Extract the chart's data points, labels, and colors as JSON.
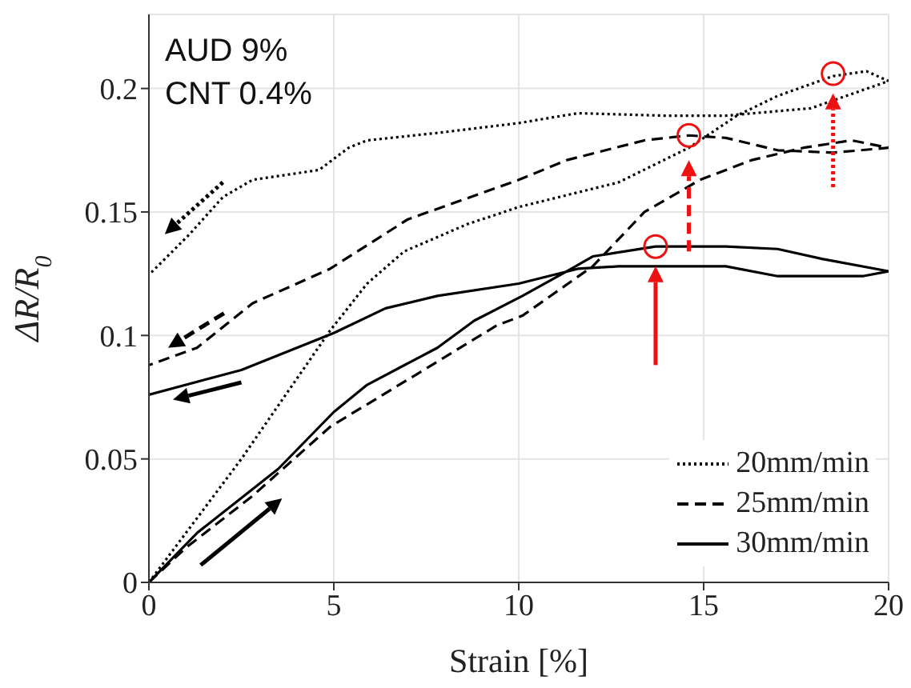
{
  "chart_data": {
    "type": "line",
    "xlabel": "Strain [%]",
    "ylabel": "ΔR/R$_{0}$",
    "annotations": [
      "AUD 9%",
      "CNT 0.4%"
    ],
    "xlim": [
      0,
      20
    ],
    "ylim": [
      0,
      0.23
    ],
    "xticks": [
      0,
      5,
      10,
      15,
      20
    ],
    "yticks": [
      0,
      0.05,
      0.1,
      0.15,
      0.2
    ],
    "grid": true,
    "legend": "bottom right",
    "series": [
      {
        "name": "20mm/min",
        "color": "#000000",
        "line_style": "dotted",
        "x": [
          0,
          2.5,
          4.9,
          5.9,
          6.9,
          8.6,
          10.0,
          12.7,
          14.6,
          15.9,
          17.0,
          18.5,
          19.4,
          20,
          17.9,
          15.6,
          13.9,
          11.6,
          10.0,
          7.8,
          5.9,
          5.4,
          4.6,
          2.8,
          2.0,
          1.1,
          0.1,
          0
        ],
        "values": [
          0,
          0.05,
          0.102,
          0.121,
          0.134,
          0.145,
          0.152,
          0.162,
          0.176,
          0.189,
          0.197,
          0.205,
          0.207,
          0.203,
          0.192,
          0.189,
          0.189,
          0.19,
          0.186,
          0.182,
          0.179,
          0.176,
          0.167,
          0.163,
          0.156,
          0.141,
          0.126,
          0.125
        ]
      },
      {
        "name": "25mm/min",
        "color": "#000000",
        "line_style": "dashed",
        "x": [
          0,
          1.0,
          2.8,
          4.9,
          7.1,
          9.4,
          10.1,
          12.0,
          13.4,
          14.9,
          16.3,
          17.7,
          19.0,
          20,
          18.5,
          17.0,
          15.6,
          14.6,
          13.4,
          11.3,
          10.0,
          7.0,
          4.9,
          2.8,
          1.3,
          0
        ],
        "values": [
          0,
          0.014,
          0.035,
          0.063,
          0.083,
          0.104,
          0.108,
          0.128,
          0.15,
          0.163,
          0.171,
          0.176,
          0.179,
          0.176,
          0.174,
          0.175,
          0.18,
          0.181,
          0.179,
          0.171,
          0.163,
          0.147,
          0.127,
          0.113,
          0.095,
          0.088
        ]
      },
      {
        "type": "scatter",
        "marker": "circle",
        "color": "#ee1111",
        "x": [
          13.7,
          14.6,
          18.5
        ],
        "values": [
          0.136,
          0.181,
          0.206
        ]
      },
      {
        "name": "30mm/min",
        "color": "#000000",
        "line_style": "solid",
        "x": [
          0,
          1.3,
          3.5,
          5.0,
          5.9,
          7.8,
          8.8,
          10.1,
          11.3,
          12.0,
          13.7,
          15.6,
          17.0,
          18.2,
          20,
          19.3,
          17.0,
          15.6,
          12.7,
          11.6,
          10.0,
          7.8,
          6.4,
          5.0,
          2.5,
          0
        ],
        "values": [
          0,
          0.02,
          0.046,
          0.069,
          0.08,
          0.095,
          0.106,
          0.116,
          0.126,
          0.132,
          0.136,
          0.136,
          0.135,
          0.131,
          0.126,
          0.124,
          0.124,
          0.128,
          0.128,
          0.127,
          0.121,
          0.116,
          0.111,
          0.101,
          0.086,
          0.076
        ]
      }
    ]
  }
}
